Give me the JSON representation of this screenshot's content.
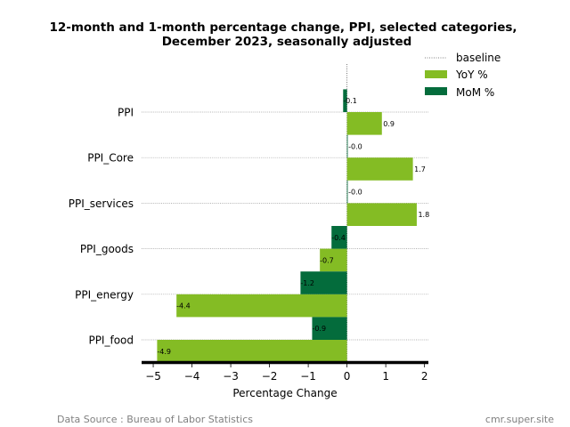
{
  "chart_data": {
    "type": "bar",
    "orientation": "horizontal",
    "title_line1": "12-month and 1-month percentage change, PPI, selected categories,",
    "title_line2": "December 2023, seasonally adjusted",
    "categories": [
      "PPI",
      "PPI_Core",
      "PPI_services",
      "PPI_goods",
      "PPI_energy",
      "PPI_food"
    ],
    "series": [
      {
        "name": "YoY %",
        "color": "#84bc24",
        "values": [
          0.9,
          1.7,
          1.8,
          -0.7,
          -4.4,
          -4.9
        ],
        "labels": [
          "0.9",
          "1.7",
          "1.8",
          "-0.7",
          "-4.4",
          "-4.9"
        ]
      },
      {
        "name": "MoM %",
        "color": "#046c3c",
        "values": [
          -0.1,
          -0.0,
          -0.0,
          -0.4,
          -1.2,
          -0.9
        ],
        "labels": [
          "-0.1",
          "-0.0",
          "-0.0",
          "-0.4",
          "-1.2",
          "-0.9"
        ]
      }
    ],
    "baseline_label": "baseline",
    "xlabel": "Percentage Change",
    "xlim": [
      -5.3,
      2.1
    ],
    "xticks": [
      -5,
      -4,
      -3,
      -2,
      -1,
      0,
      1,
      2
    ],
    "xtick_labels": [
      "−5",
      "−4",
      "−3",
      "−2",
      "−1",
      "0",
      "1",
      "2"
    ],
    "legend_position": "top-right",
    "grid": "dotted horizontal lines at categories"
  },
  "footer": {
    "source": "Data Source : Bureau of Labor Statistics",
    "site": "cmr.super.site"
  }
}
